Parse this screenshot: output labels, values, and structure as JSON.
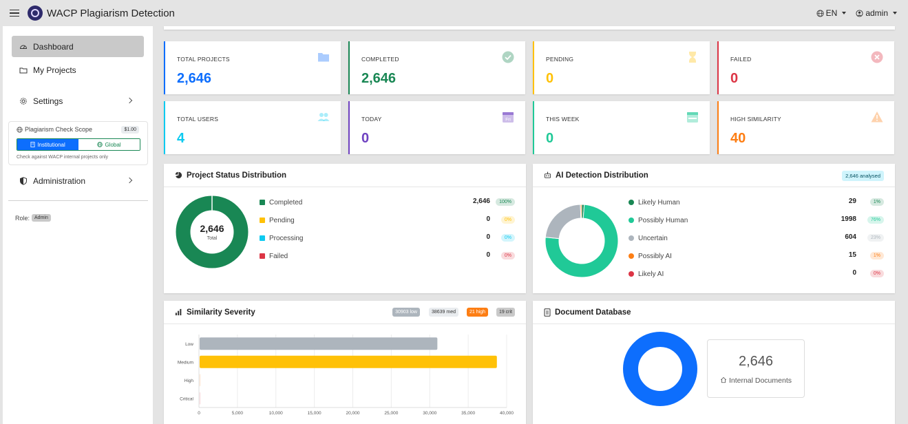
{
  "app": {
    "title": "WACP Plagiarism Detection"
  },
  "topbar": {
    "language": "EN",
    "user": "admin"
  },
  "sidebar": {
    "dashboard": "Dashboard",
    "my_projects": "My Projects",
    "settings": "Settings",
    "administration": "Administration",
    "scope": {
      "title": "Plagiarism Check Scope",
      "price": "$1.00",
      "institutional": "Institutional",
      "global": "Global",
      "selected": "Institutional",
      "note": "Check against WACP internal projects only"
    },
    "role_label": "Role:",
    "role_value": "Admin"
  },
  "stats": [
    {
      "label": "TOTAL PROJECTS",
      "value": "2,646",
      "color": "#0d6efd",
      "icon": "folder-icon"
    },
    {
      "label": "COMPLETED",
      "value": "2,646",
      "color": "#198754",
      "icon": "check-circle-icon"
    },
    {
      "label": "PENDING",
      "value": "0",
      "color": "#ffc107",
      "icon": "hourglass-icon"
    },
    {
      "label": "FAILED",
      "value": "0",
      "color": "#dc3545",
      "icon": "x-circle-icon"
    },
    {
      "label": "TOTAL USERS",
      "value": "4",
      "color": "#0dcaf0",
      "icon": "users-icon"
    },
    {
      "label": "TODAY",
      "value": "0",
      "color": "#6f42c1",
      "icon": "calendar-day-icon",
      "icon_text": "Fri"
    },
    {
      "label": "THIS WEEK",
      "value": "0",
      "color": "#20c997",
      "icon": "calendar-week-icon"
    },
    {
      "label": "HIGH SIMILARITY",
      "value": "40",
      "color": "#fd7e14",
      "icon": "warning-icon"
    }
  ],
  "project_status": {
    "title": "Project Status Distribution",
    "center_value": "2,646",
    "center_label": "Total",
    "items": [
      {
        "label": "Completed",
        "value": "2,646",
        "pct": "100%",
        "color": "#198754"
      },
      {
        "label": "Pending",
        "value": "0",
        "pct": "0%",
        "color": "#ffc107"
      },
      {
        "label": "Processing",
        "value": "0",
        "pct": "0%",
        "color": "#0dcaf0"
      },
      {
        "label": "Failed",
        "value": "0",
        "pct": "0%",
        "color": "#dc3545"
      }
    ]
  },
  "ai_detection": {
    "title": "AI Detection Distribution",
    "badge": "2,646 analysed",
    "items": [
      {
        "label": "Likely Human",
        "value": "29",
        "pct": "1%",
        "color": "#198754"
      },
      {
        "label": "Possibly Human",
        "value": "1998",
        "pct": "76%",
        "color": "#20c997"
      },
      {
        "label": "Uncertain",
        "value": "604",
        "pct": "23%",
        "color": "#adb5bd"
      },
      {
        "label": "Possibly AI",
        "value": "15",
        "pct": "1%",
        "color": "#fd7e14"
      },
      {
        "label": "Likely AI",
        "value": "0",
        "pct": "0%",
        "color": "#dc3545"
      }
    ]
  },
  "similarity": {
    "title": "Similarity Severity",
    "badges": [
      {
        "text": "30903 low",
        "bg": "#adb5bd",
        "fg": "#ffffff"
      },
      {
        "text": "38639 med",
        "bg": "#e9ecef",
        "fg": "#333333"
      },
      {
        "text": "21 high",
        "bg": "#fd7e14",
        "fg": "#ffffff"
      },
      {
        "text": "19 crit",
        "bg": "#c9c9c9",
        "fg": "#333333"
      }
    ]
  },
  "chart_data": {
    "type": "bar",
    "orientation": "horizontal",
    "categories": [
      "Low",
      "Medium",
      "High",
      "Critical"
    ],
    "values": [
      30903,
      38639,
      21,
      19
    ],
    "colors": [
      "#adb5bd",
      "#ffc107",
      "#fd7e14",
      "#dc3545"
    ],
    "xlim": [
      0,
      40000
    ],
    "xticks": [
      "0",
      "5,000",
      "10,000",
      "15,000",
      "20,000",
      "25,000",
      "30,000",
      "35,000",
      "40,000"
    ],
    "title": "Similarity Severity"
  },
  "documents": {
    "title": "Document Database",
    "count": "2,646",
    "label": "Internal Documents"
  }
}
